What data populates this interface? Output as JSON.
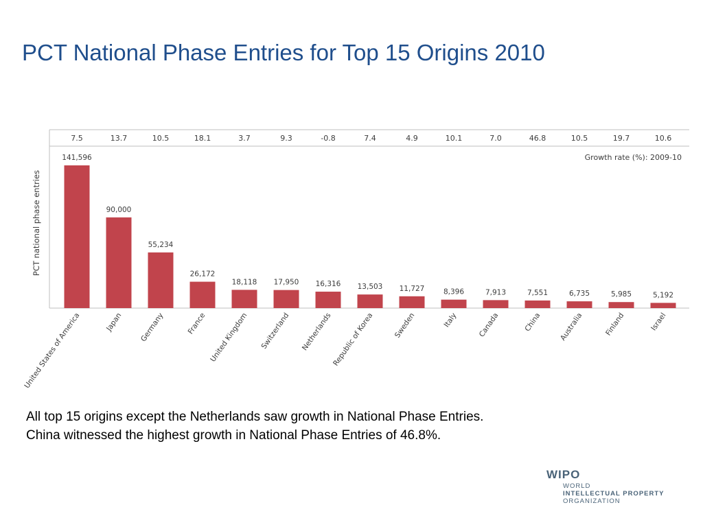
{
  "slide": {
    "title": "PCT National Phase Entries for Top 15 Origins 2010"
  },
  "caption": {
    "line1": "All top 15 origins except the Netherlands saw growth in National Phase Entries.",
    "line2": "China witnessed the highest growth in National Phase Entries of 46.8%."
  },
  "logo": {
    "name": "WIPO",
    "line1": "WORLD",
    "line2": "INTELLECTUAL PROPERTY",
    "line3": "ORGANIZATION"
  },
  "colors": {
    "title": "#1f4e8c",
    "bar": "#c1444c",
    "text": "#3c3c3c",
    "axis": "#bfbfbf",
    "logo": "#4a6378"
  },
  "chart_data": {
    "type": "bar",
    "ylabel": "PCT national phase entries",
    "categories": [
      "United States of America",
      "Japan",
      "Germany",
      "France",
      "United Kingdom",
      "Switzerland",
      "Netherlands",
      "Republic of Korea",
      "Sweden",
      "Italy",
      "Canada",
      "China",
      "Australia",
      "Finland",
      "Israel"
    ],
    "values": [
      141596,
      90000,
      55234,
      26172,
      18118,
      17950,
      16316,
      13503,
      11727,
      8396,
      7913,
      7551,
      6735,
      5985,
      5192
    ],
    "value_labels": [
      "141,596",
      "90,000",
      "55,234",
      "26,172",
      "18,118",
      "17,950",
      "16,316",
      "13,503",
      "11,727",
      "8,396",
      "7,913",
      "7,551",
      "6,735",
      "5,985",
      "5,192"
    ],
    "growth_rates": [
      "7.5",
      "13.7",
      "10.5",
      "18.1",
      "3.7",
      "9.3",
      "-0.8",
      "7.4",
      "4.9",
      "10.1",
      "7.0",
      "46.8",
      "10.5",
      "19.7",
      "10.6"
    ],
    "growth_label": "Growth rate (%): 2009-10",
    "ylim": [
      0,
      145000
    ],
    "grid": false
  }
}
